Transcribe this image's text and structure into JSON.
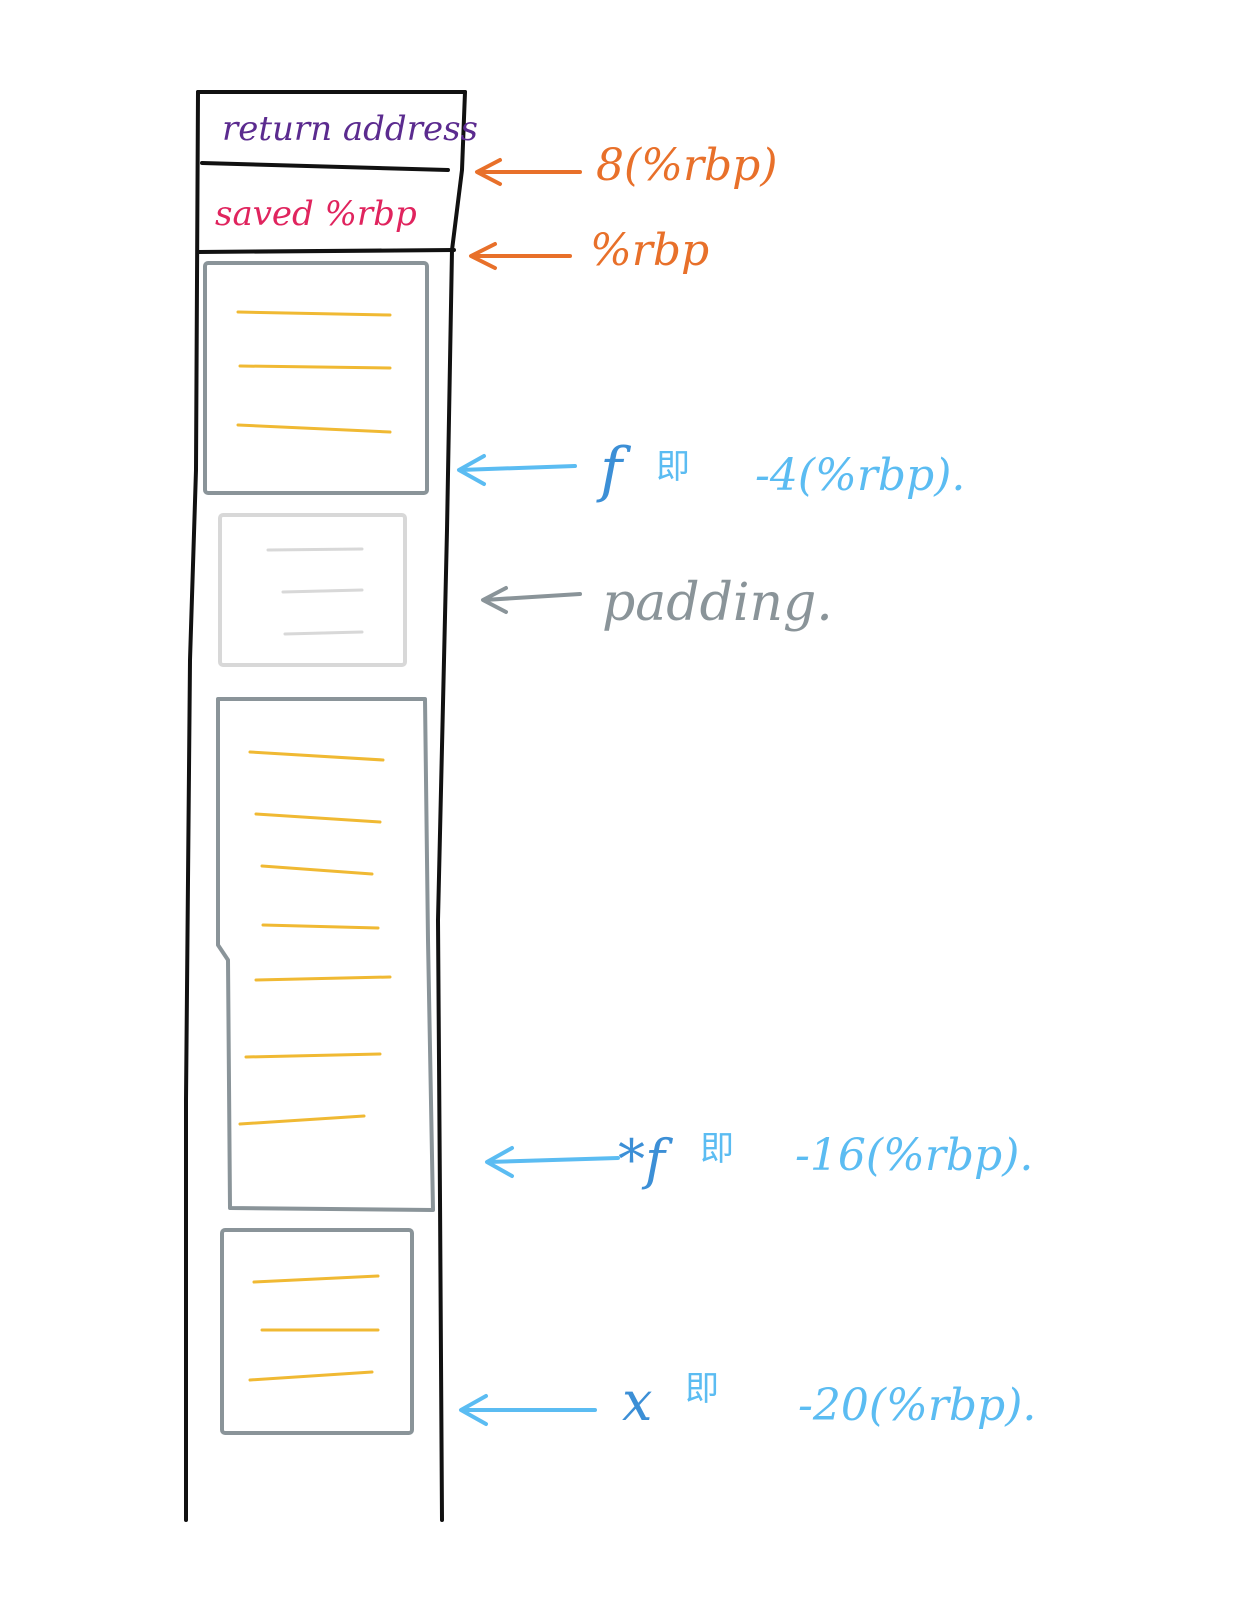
{
  "stack": {
    "return_address": "return address",
    "saved_rbp": "saved %rbp"
  },
  "labels": {
    "rbp_plus_8": "8(%rbp)",
    "rbp": "%rbp",
    "f_var": "f",
    "f_ji": "即",
    "f_offset": "-4(%rbp).",
    "padding": "padding.",
    "pf_var": "*f",
    "pf_ji": "即",
    "pf_offset": "-16(%rbp).",
    "x_var": "x",
    "x_ji": "即",
    "x_offset": "-20(%rbp)."
  },
  "colors": {
    "ink": "#111111",
    "purple": "#5b2b8f",
    "crimson": "#e0245e",
    "orange": "#e8702a",
    "blue": "#5bbcf2",
    "dark_blue": "#3c8fd6",
    "gray": "#8a9499",
    "light_gray": "#d8d8d8",
    "yellow": "#f0b933"
  },
  "blocks": {
    "f_lines": 3,
    "padding_lines": 3,
    "pf_lines": 7,
    "x_lines": 3
  }
}
